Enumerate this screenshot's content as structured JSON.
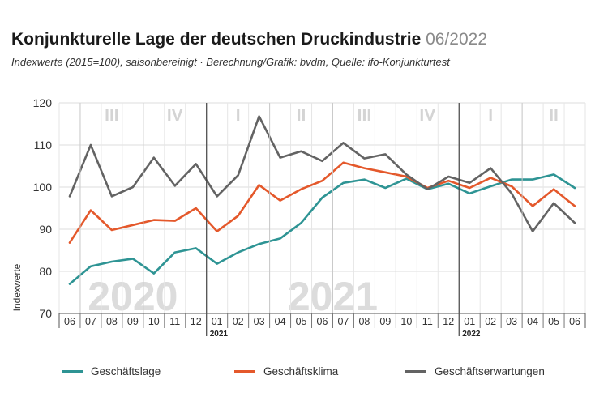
{
  "header": {
    "title": "Konjunkturelle Lage der deutschen Druckindustrie",
    "title_date": "06/2022",
    "subtitle": "Indexwerte (2015=100), saisonbereinigt · Berechnung/Grafik: bvdm, Quelle: ifo-Konjunkturtest"
  },
  "chart_data": {
    "type": "line",
    "ylabel": "Indexwerte",
    "ylim": [
      70,
      120
    ],
    "yticks": [
      70,
      80,
      90,
      100,
      110,
      120
    ],
    "x": [
      "06",
      "07",
      "08",
      "09",
      "10",
      "11",
      "12",
      "01",
      "02",
      "03",
      "04",
      "05",
      "06",
      "07",
      "08",
      "09",
      "10",
      "11",
      "12",
      "01",
      "02",
      "03",
      "04",
      "05",
      "06"
    ],
    "year_labels": [
      {
        "label": "2021",
        "index": 7
      },
      {
        "label": "2022",
        "index": 19
      }
    ],
    "quarter_labels": [
      {
        "label": "III",
        "from": 1,
        "to": 3
      },
      {
        "label": "IV",
        "from": 4,
        "to": 6
      },
      {
        "label": "I",
        "from": 7,
        "to": 9
      },
      {
        "label": "II",
        "from": 10,
        "to": 12
      },
      {
        "label": "III",
        "from": 13,
        "to": 15
      },
      {
        "label": "IV",
        "from": 16,
        "to": 18
      },
      {
        "label": "I",
        "from": 19,
        "to": 21
      },
      {
        "label": "II",
        "from": 22,
        "to": 24
      }
    ],
    "watermarks": [
      {
        "label": "2020",
        "from": 0,
        "to": 6
      },
      {
        "label": "2021",
        "from": 7,
        "to": 18
      }
    ],
    "series": [
      {
        "name": "Geschäftslage",
        "color": "#2e9494",
        "values": [
          77.0,
          81.2,
          82.3,
          83.0,
          79.5,
          84.5,
          85.5,
          81.8,
          84.5,
          86.5,
          87.8,
          91.5,
          97.5,
          101.0,
          101.8,
          99.8,
          102.0,
          99.5,
          100.8,
          98.5,
          100.2,
          101.8,
          101.8,
          103.0,
          99.8
        ]
      },
      {
        "name": "Geschäftsklima",
        "color": "#e4582b",
        "values": [
          86.8,
          94.5,
          89.8,
          91.0,
          92.2,
          92.0,
          95.0,
          89.5,
          93.2,
          100.5,
          96.8,
          99.5,
          101.5,
          105.8,
          104.5,
          103.5,
          102.5,
          99.8,
          101.5,
          99.8,
          102.2,
          100.2,
          95.5,
          99.5,
          95.5
        ]
      },
      {
        "name": "Geschäftserwartungen",
        "color": "#636363",
        "values": [
          97.8,
          110.0,
          97.8,
          100.0,
          107.0,
          100.3,
          105.5,
          97.8,
          102.8,
          116.8,
          107.0,
          108.5,
          106.2,
          110.5,
          106.8,
          107.8,
          103.0,
          99.5,
          102.5,
          101.0,
          104.5,
          98.5,
          89.5,
          96.2,
          91.5
        ]
      }
    ]
  }
}
